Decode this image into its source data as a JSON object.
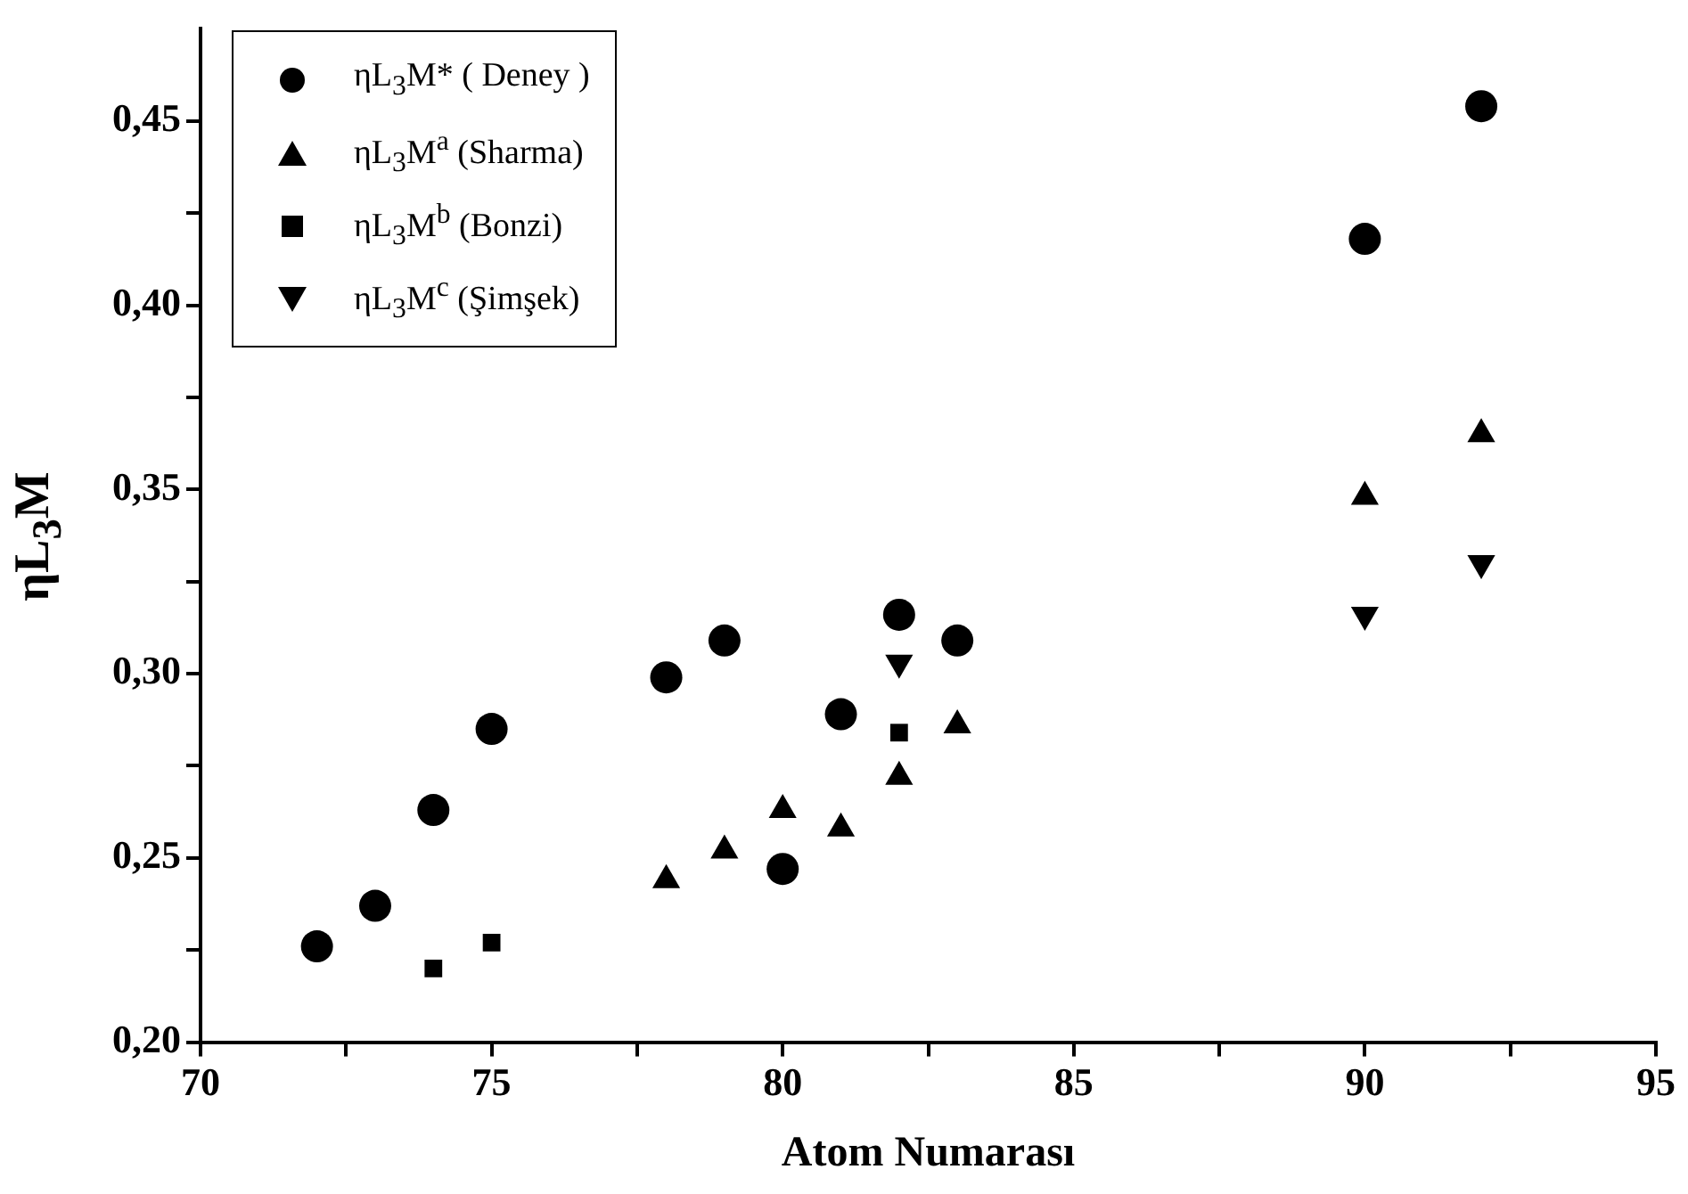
{
  "chart_data": {
    "type": "scatter",
    "xlabel": "Atom Numarası",
    "ylabel": "ηL$_{3}$M",
    "xlim": [
      70,
      95
    ],
    "xticks": [
      70,
      {
        "value": 72.5,
        "label": null
      },
      75,
      {
        "value": 77.5,
        "label": null
      },
      80,
      {
        "value": 82.5,
        "label": null
      },
      85,
      {
        "value": 87.5,
        "label": null
      },
      90,
      {
        "value": 92.5,
        "label": null
      },
      95
    ],
    "ylim": [
      0.2,
      0.475
    ],
    "yticks": [
      {
        "value": 0.2,
        "label": "0,20"
      },
      {
        "value": 0.225,
        "label": null
      },
      {
        "value": 0.25,
        "label": "0,25"
      },
      {
        "value": 0.275,
        "label": null
      },
      {
        "value": 0.3,
        "label": "0,30"
      },
      {
        "value": 0.325,
        "label": null
      },
      {
        "value": 0.35,
        "label": "0,35"
      },
      {
        "value": 0.375,
        "label": null
      },
      {
        "value": 0.4,
        "label": "0,40"
      },
      {
        "value": 0.425,
        "label": null
      },
      {
        "value": 0.45,
        "label": "0,45"
      }
    ],
    "grid": false,
    "legend": "top left",
    "series": [
      {
        "name": "ηL$_{3}$M* ( Deney )",
        "color": "#000000",
        "marker": "circle",
        "x": [
          72,
          73,
          74,
          75,
          78,
          79,
          80,
          81,
          82,
          83,
          90,
          92
        ],
        "values": [
          0.226,
          0.237,
          0.263,
          0.285,
          0.299,
          0.309,
          0.247,
          0.289,
          0.316,
          0.309,
          0.418,
          0.454
        ]
      },
      {
        "name": "ηL$_{3}$M$^{a}$ (Sharma)",
        "color": "#000000",
        "marker": "triangle",
        "x": [
          78,
          79,
          80,
          81,
          82,
          83,
          90,
          92
        ],
        "values": [
          0.244,
          0.252,
          0.263,
          0.258,
          0.272,
          0.286,
          0.348,
          0.365
        ]
      },
      {
        "name": "ηL$_{3}$M$^{b}$ (Bonzi)",
        "color": "#000000",
        "marker": "square",
        "x": [
          74,
          75,
          82
        ],
        "values": [
          0.22,
          0.227,
          0.284
        ]
      },
      {
        "name": "ηL$_{3}$M$^{c}$ (Şimşek)",
        "color": "#000000",
        "marker": "triangle-down",
        "x": [
          82,
          90,
          92
        ],
        "values": [
          0.303,
          0.316,
          0.33
        ]
      }
    ]
  }
}
